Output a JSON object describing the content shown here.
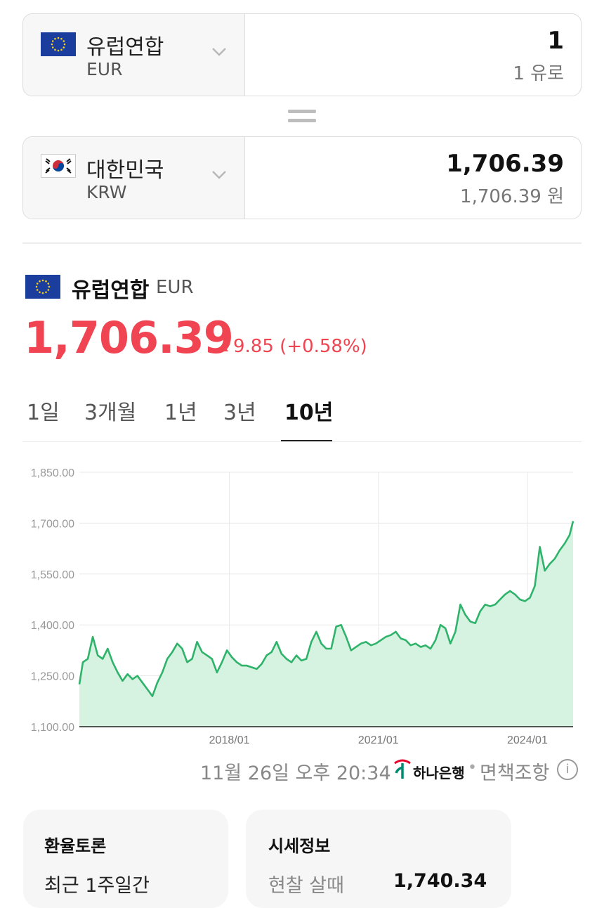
{
  "converter": {
    "from": {
      "name": "유럽연합",
      "code": "EUR",
      "amount": "1",
      "amount_text": "1 유로",
      "flag": "eu-flag-icon"
    },
    "to": {
      "name": "대한민국",
      "code": "KRW",
      "amount": "1,706.39",
      "amount_text": "1,706.39 원",
      "flag": "kr-flag-icon"
    }
  },
  "rate": {
    "name": "유럽연합",
    "code": "EUR",
    "value": "1,706.39",
    "change": "9.85 (+0.58%)",
    "direction": "up",
    "color": "#f04452"
  },
  "tabs": [
    {
      "label": "1일"
    },
    {
      "label": "3개월"
    },
    {
      "label": "1년"
    },
    {
      "label": "3년"
    },
    {
      "label": "10년",
      "active": true
    }
  ],
  "chart_data": {
    "type": "area",
    "title": "",
    "xlabel": "",
    "ylabel": "",
    "ylim": [
      1100,
      1850
    ],
    "yticks": [
      "1,850.00",
      "1,700.00",
      "1,550.00",
      "1,400.00",
      "1,250.00",
      "1,100.00"
    ],
    "xticks": [
      "2018/01",
      "2021/01",
      "2024/01"
    ],
    "xlim": [
      2014.98,
      2024.92
    ],
    "grid": true,
    "line_color": "#2fb36b",
    "fill_color": "#d6f2e1",
    "series": [
      {
        "x": [
          2014.98,
          2015.05,
          2015.15,
          2015.25,
          2015.35,
          2015.45,
          2015.55,
          2015.65,
          2015.75,
          2015.85,
          2015.95,
          2016.05,
          2016.15,
          2016.25,
          2016.35,
          2016.45,
          2016.55,
          2016.65,
          2016.75,
          2016.85,
          2016.95,
          2017.05,
          2017.15,
          2017.25,
          2017.35,
          2017.45,
          2017.55,
          2017.65,
          2017.75,
          2017.85,
          2017.95,
          2018.05,
          2018.15,
          2018.25,
          2018.35,
          2018.45,
          2018.55,
          2018.65,
          2018.75,
          2018.85,
          2018.95,
          2019.05,
          2019.15,
          2019.25,
          2019.35,
          2019.45,
          2019.55,
          2019.65,
          2019.75,
          2019.85,
          2019.95,
          2020.05,
          2020.15,
          2020.25,
          2020.35,
          2020.45,
          2020.55,
          2020.65,
          2020.75,
          2020.85,
          2020.95,
          2021.05,
          2021.15,
          2021.25,
          2021.35,
          2021.45,
          2021.55,
          2021.65,
          2021.75,
          2021.85,
          2021.95,
          2022.05,
          2022.15,
          2022.25,
          2022.35,
          2022.45,
          2022.55,
          2022.65,
          2022.75,
          2022.85,
          2022.95,
          2023.05,
          2023.15,
          2023.25,
          2023.35,
          2023.45,
          2023.55,
          2023.65,
          2023.75,
          2023.85,
          2023.95,
          2024.05,
          2024.15,
          2024.25,
          2024.35,
          2024.45,
          2024.55,
          2024.65,
          2024.75,
          2024.85,
          2024.92
        ],
        "values": [
          1225,
          1290,
          1300,
          1365,
          1310,
          1300,
          1330,
          1290,
          1260,
          1235,
          1255,
          1240,
          1250,
          1230,
          1210,
          1190,
          1230,
          1260,
          1300,
          1320,
          1345,
          1330,
          1290,
          1300,
          1350,
          1320,
          1310,
          1300,
          1260,
          1290,
          1325,
          1305,
          1290,
          1280,
          1280,
          1275,
          1270,
          1285,
          1310,
          1320,
          1350,
          1315,
          1300,
          1290,
          1310,
          1295,
          1300,
          1350,
          1380,
          1345,
          1330,
          1330,
          1395,
          1400,
          1365,
          1325,
          1335,
          1345,
          1350,
          1340,
          1345,
          1355,
          1365,
          1370,
          1380,
          1360,
          1355,
          1340,
          1345,
          1335,
          1340,
          1330,
          1355,
          1400,
          1390,
          1345,
          1380,
          1460,
          1430,
          1410,
          1405,
          1440,
          1460,
          1455,
          1460,
          1475,
          1490,
          1500,
          1490,
          1475,
          1470,
          1480,
          1515,
          1630,
          1560,
          1580,
          1595,
          1620,
          1640,
          1665,
          1706
        ]
      }
    ]
  },
  "footer": {
    "timestamp": "11월 26일 오후 20:34",
    "bank": "하나은행",
    "separator": "•",
    "disclaimer": "면책조항",
    "info": "i"
  },
  "cards": [
    {
      "title": "환율토론",
      "line": "최근 1주일간"
    },
    {
      "title": "시세정보",
      "label": "현찰 살때",
      "value": "1,740.34"
    }
  ]
}
